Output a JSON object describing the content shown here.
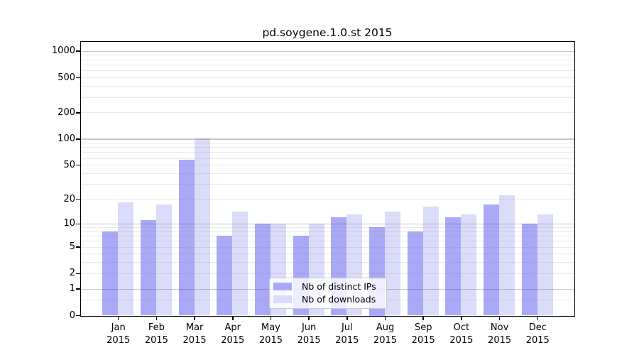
{
  "chart_data": {
    "type": "bar",
    "title": "pd.soygene.1.0.st 2015",
    "scale": "log10(1+x)",
    "categories": [
      "Jan 2015",
      "Feb 2015",
      "Mar 2015",
      "Apr 2015",
      "May 2015",
      "Jun 2015",
      "Jul 2015",
      "Aug 2015",
      "Sep 2015",
      "Oct 2015",
      "Nov 2015",
      "Dec 2015"
    ],
    "series": [
      {
        "name": "Nb of distinct IPs",
        "color": "#a9a9f7",
        "values": [
          8,
          11,
          57,
          7,
          10,
          7,
          12,
          9,
          8,
          12,
          17,
          10
        ]
      },
      {
        "name": "Nb of downloads",
        "color": "#dbdbfa",
        "values": [
          18,
          17,
          100,
          14,
          10,
          10,
          13,
          14,
          16,
          13,
          22,
          13
        ]
      }
    ],
    "y_ticks": [
      0,
      1,
      2,
      5,
      10,
      20,
      50,
      100,
      200,
      500,
      1000
    ],
    "ylim": [
      0,
      1300
    ],
    "xlabel": "",
    "ylabel": "",
    "grid": true,
    "legend_position": "bottom-center-inside"
  },
  "legend": {
    "items": [
      {
        "label": "Nb of distinct IPs",
        "color": "#a9a9f7"
      },
      {
        "label": "Nb of downloads",
        "color": "#dbdbfa"
      }
    ]
  },
  "colors": {
    "bar_dark": "#a9a9f7",
    "bar_light": "#dbdbfa",
    "grid_major": "#c8c8c8",
    "grid_minor": "#ebebeb",
    "axis": "#000000",
    "background": "#ffffff"
  }
}
